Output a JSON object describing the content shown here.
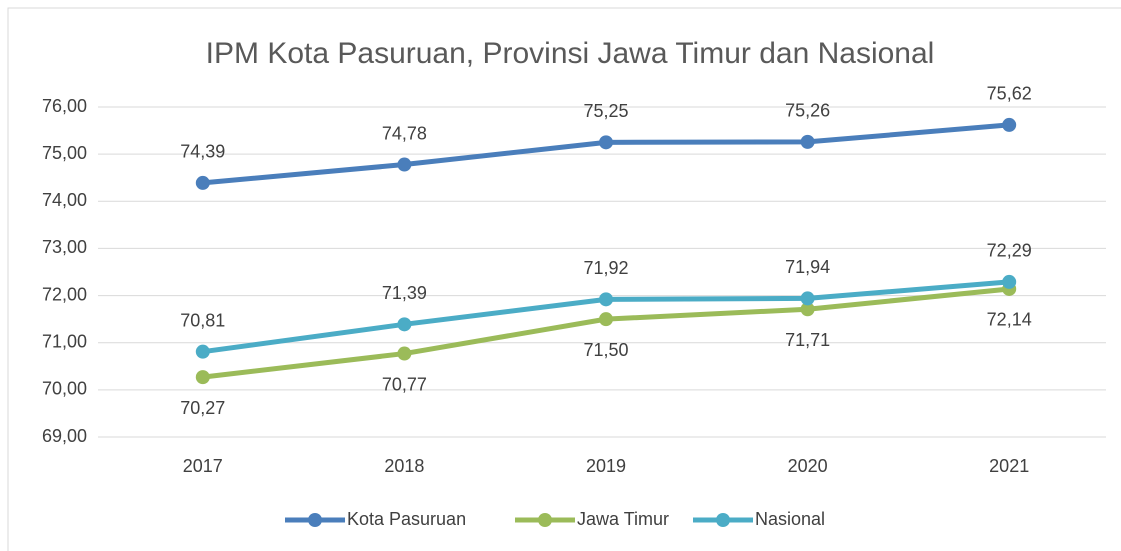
{
  "chart_data": {
    "type": "line",
    "title": "IPM Kota Pasuruan, Provinsi Jawa Timur dan Nasional",
    "categories": [
      "2017",
      "2018",
      "2019",
      "2020",
      "2021"
    ],
    "series": [
      {
        "name": "Kota Pasuruan",
        "color": "#4a7ebb",
        "values": [
          74.39,
          74.78,
          75.25,
          75.26,
          75.62
        ],
        "value_labels": [
          "74,39",
          "74,78",
          "75,25",
          "75,26",
          "75,62"
        ]
      },
      {
        "name": "Jawa Timur",
        "color": "#9bbb59",
        "values": [
          70.27,
          70.77,
          71.5,
          71.71,
          72.14
        ],
        "value_labels": [
          "70,27",
          "70,77",
          "71,50",
          "71,71",
          "72,14"
        ]
      },
      {
        "name": "Nasional",
        "color": "#4bacc6",
        "values": [
          70.81,
          71.39,
          71.92,
          71.94,
          72.29
        ],
        "value_labels": [
          "70,81",
          "71,39",
          "71,92",
          "71,94",
          "72,29"
        ]
      }
    ],
    "ylim": [
      69,
      76
    ],
    "yticks": [
      {
        "value": 69,
        "label": "69,00"
      },
      {
        "value": 70,
        "label": "70,00"
      },
      {
        "value": 71,
        "label": "71,00"
      },
      {
        "value": 72,
        "label": "72,00"
      },
      {
        "value": 73,
        "label": "73,00"
      },
      {
        "value": 74,
        "label": "74,00"
      },
      {
        "value": 75,
        "label": "75,00"
      },
      {
        "value": 76,
        "label": "76,00"
      }
    ],
    "grid": true,
    "legend": "bottom"
  }
}
